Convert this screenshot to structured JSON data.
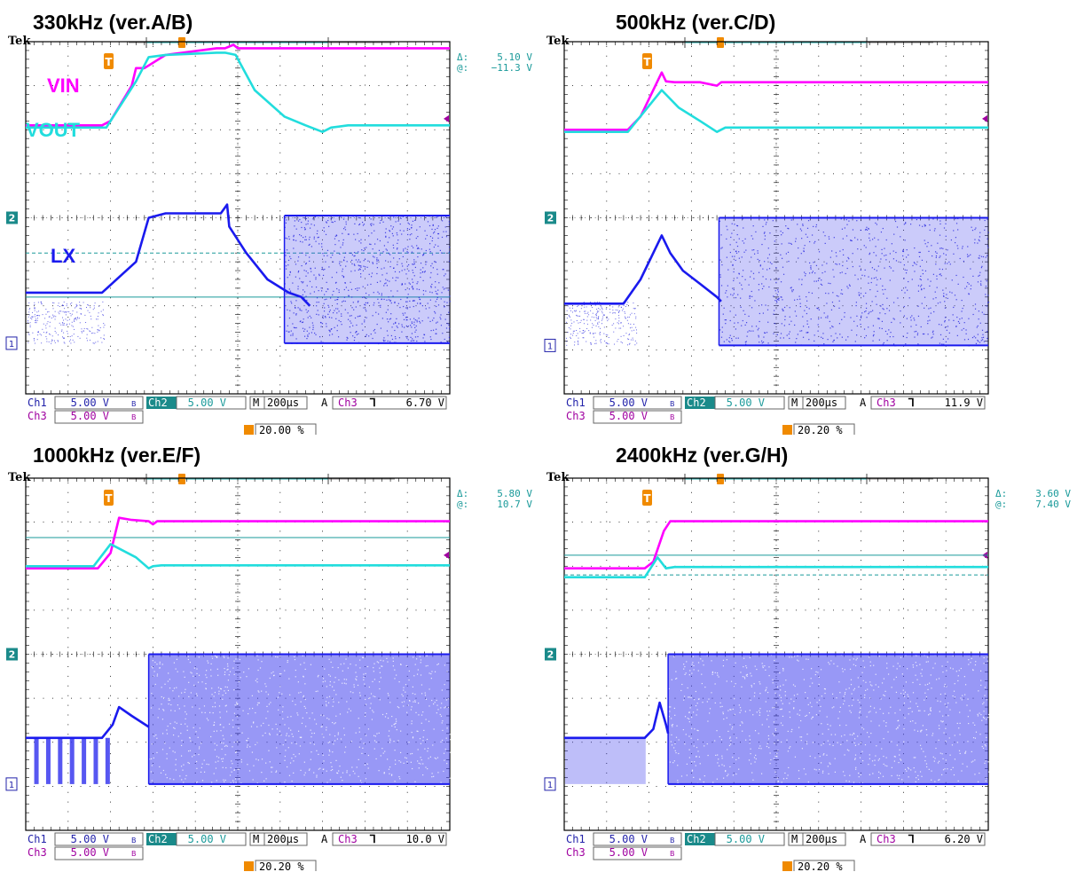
{
  "chart_data": [
    {
      "type": "line",
      "title": "330kHz (ver.A/B)",
      "brand": "Tek",
      "cursor": {
        "delta": "5.10 V",
        "at": "−11.3 V"
      },
      "trace_labels": {
        "vin": "VIN",
        "vout": "VOUT",
        "lx": "LX"
      },
      "status": {
        "ch1": "5.00 V",
        "ch2": "5.00 V",
        "ch3": "5.00 V",
        "time": "200µs",
        "trig_src": "Ch3",
        "trig_level": "6.70 V",
        "trig_pos": "20.00 %"
      },
      "axes": {
        "x_divisions": 10,
        "y_divisions": 8,
        "grid": true
      },
      "series": [
        {
          "name": "VIN",
          "color": "#ff00ff",
          "x": [
            0,
            1.8,
            2.0,
            2.5,
            2.6,
            2.8,
            3.3,
            4.5,
            4.7,
            4.9,
            5.0,
            10
          ],
          "y": [
            6.1,
            6.1,
            6.2,
            7.0,
            7.4,
            7.4,
            7.7,
            7.85,
            7.85,
            7.93,
            7.85,
            7.85
          ]
        },
        {
          "name": "VOUT",
          "color": "#22dddd",
          "x": [
            0,
            1.9,
            2.6,
            2.9,
            3.3,
            4.5,
            4.7,
            4.95,
            5.4,
            6.1,
            6.6,
            7.0,
            7.2,
            7.6,
            10
          ],
          "y": [
            6.05,
            6.05,
            7.1,
            7.65,
            7.7,
            7.75,
            7.75,
            7.7,
            6.9,
            6.3,
            6.1,
            5.95,
            6.05,
            6.1,
            6.1
          ]
        },
        {
          "name": "LX",
          "color": "#1a1aee",
          "x": [
            0,
            1.8,
            2.6,
            2.9,
            3.3,
            4.6,
            4.75,
            4.8,
            5.2,
            5.7,
            6.2,
            6.5,
            6.7
          ],
          "y": [
            2.3,
            2.3,
            3.0,
            4.0,
            4.1,
            4.1,
            4.3,
            3.8,
            3.2,
            2.6,
            2.3,
            2.2,
            2.0
          ]
        }
      ],
      "lx_floor": 1.15,
      "switching_start": 6.1,
      "switching_top": 4.05,
      "reference_lines": [
        {
          "y": 2.2,
          "dashed": false
        },
        {
          "y": 3.2,
          "dashed": true
        }
      ]
    },
    {
      "type": "line",
      "title": "500kHz (ver.C/D)",
      "brand": "Tek",
      "cursor": null,
      "trace_labels": null,
      "status": {
        "ch1": "5.00 V",
        "ch2": "5.00 V",
        "ch3": "5.00 V",
        "time": "200µs",
        "trig_src": "Ch3",
        "trig_level": "11.9 V",
        "trig_pos": "20.20 %"
      },
      "axes": {
        "x_divisions": 10,
        "y_divisions": 8,
        "grid": true
      },
      "series": [
        {
          "name": "VIN",
          "color": "#ff00ff",
          "x": [
            0,
            1.5,
            1.8,
            2.3,
            2.4,
            2.6,
            3.2,
            3.6,
            3.7,
            3.8,
            10
          ],
          "y": [
            6.0,
            6.0,
            6.3,
            7.3,
            7.1,
            7.08,
            7.08,
            7.0,
            7.08,
            7.08,
            7.08
          ]
        },
        {
          "name": "VOUT",
          "color": "#22dddd",
          "x": [
            0,
            1.5,
            2.3,
            2.7,
            3.2,
            3.6,
            3.8,
            10
          ],
          "y": [
            5.95,
            5.95,
            6.9,
            6.5,
            6.2,
            5.95,
            6.05,
            6.05
          ]
        },
        {
          "name": "LX",
          "color": "#1a1aee",
          "x": [
            0,
            1.4,
            1.8,
            2.3,
            2.5,
            2.8,
            3.2,
            3.6,
            3.7
          ],
          "y": [
            2.05,
            2.05,
            2.6,
            3.6,
            3.2,
            2.8,
            2.5,
            2.2,
            2.1
          ]
        }
      ],
      "lx_floor": 1.1,
      "switching_start": 3.65,
      "switching_top": 4.0,
      "reference_lines": []
    },
    {
      "type": "line",
      "title": "1000kHz (ver.E/F)",
      "brand": "Tek",
      "cursor": {
        "delta": "5.80 V",
        "at": "10.7 V"
      },
      "trace_labels": null,
      "status": {
        "ch1": "5.00 V",
        "ch2": "5.00 V",
        "ch3": "5.00 V",
        "time": "200µs",
        "trig_src": "Ch3",
        "trig_level": "10.0 V",
        "trig_pos": "20.20 %"
      },
      "axes": {
        "x_divisions": 10,
        "y_divisions": 8,
        "grid": true
      },
      "series": [
        {
          "name": "VIN",
          "color": "#ff00ff",
          "x": [
            0,
            1.7,
            2.0,
            2.2,
            2.5,
            2.9,
            3.0,
            3.1,
            10
          ],
          "y": [
            5.95,
            5.95,
            6.3,
            7.1,
            7.05,
            7.02,
            6.95,
            7.02,
            7.02
          ]
        },
        {
          "name": "VOUT",
          "color": "#22dddd",
          "x": [
            0,
            1.6,
            2.0,
            2.6,
            2.9,
            3.0,
            3.2,
            10
          ],
          "y": [
            6.0,
            6.0,
            6.5,
            6.2,
            5.95,
            6.0,
            6.02,
            6.02
          ]
        },
        {
          "name": "LX",
          "color": "#1a1aee",
          "x": [
            0,
            1.8,
            2.05,
            2.2,
            2.5,
            2.9
          ],
          "y": [
            2.1,
            2.1,
            2.4,
            2.8,
            2.6,
            2.35
          ]
        }
      ],
      "lx_floor": 1.05,
      "switching_start": 2.9,
      "switching_top": 4.0,
      "reference_lines": [
        {
          "y": 6.65,
          "dashed": false
        }
      ]
    },
    {
      "type": "line",
      "title": "2400kHz (ver.G/H)",
      "brand": "Tek",
      "cursor": {
        "delta": "3.60 V",
        "at": "7.40 V"
      },
      "trace_labels": null,
      "status": {
        "ch1": "5.00 V",
        "ch2": "5.00 V",
        "ch3": "5.00 V",
        "time": "200µs",
        "trig_src": "Ch3",
        "trig_level": "6.20 V",
        "trig_pos": "20.20 %"
      },
      "axes": {
        "x_divisions": 10,
        "y_divisions": 8,
        "grid": true
      },
      "series": [
        {
          "name": "VIN",
          "color": "#ff00ff",
          "x": [
            0,
            1.9,
            2.1,
            2.35,
            2.5,
            10
          ],
          "y": [
            5.95,
            5.95,
            6.1,
            6.8,
            7.02,
            7.02
          ]
        },
        {
          "name": "VOUT",
          "color": "#22dddd",
          "x": [
            0,
            1.9,
            2.2,
            2.4,
            2.6,
            10
          ],
          "y": [
            5.75,
            5.75,
            6.2,
            5.95,
            5.98,
            5.98
          ]
        },
        {
          "name": "LX",
          "color": "#1a1aee",
          "x": [
            0,
            1.9,
            2.1,
            2.25,
            2.4,
            2.45
          ],
          "y": [
            2.1,
            2.1,
            2.3,
            2.9,
            2.4,
            2.2
          ]
        }
      ],
      "lx_floor": 1.05,
      "switching_start": 2.45,
      "switching_top": 4.0,
      "reference_lines": [
        {
          "y": 6.25,
          "dashed": false
        },
        {
          "y": 5.8,
          "dashed": true
        }
      ]
    }
  ]
}
